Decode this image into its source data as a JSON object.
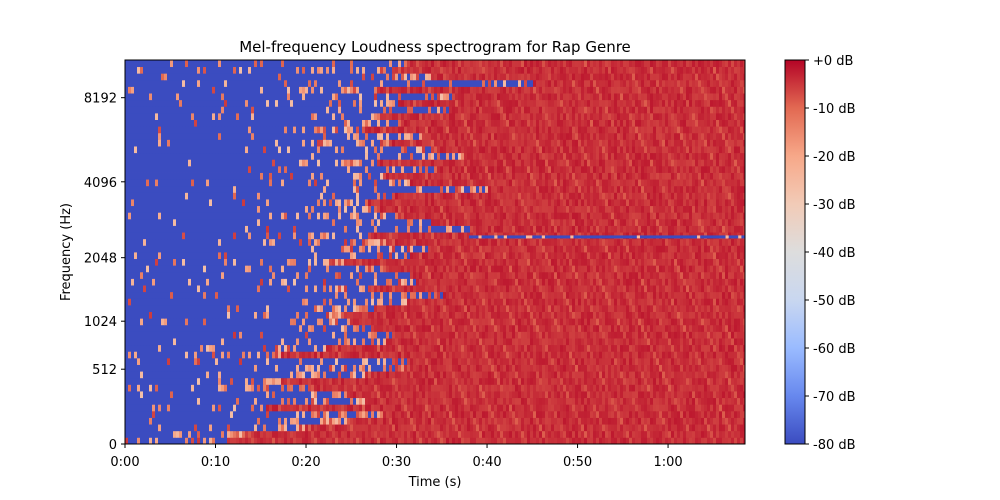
{
  "chart_data": {
    "type": "heatmap",
    "title": "Mel-frequency Loudness spectrogram for Rap Genre",
    "xlabel": "Time (s)",
    "ylabel": "Frequency (Hz)",
    "x_range_seconds": [
      0,
      68.5
    ],
    "x_ticks": [
      {
        "value": 0,
        "label": "0:00"
      },
      {
        "value": 10,
        "label": "0:10"
      },
      {
        "value": 20,
        "label": "0:20"
      },
      {
        "value": 30,
        "label": "0:30"
      },
      {
        "value": 40,
        "label": "0:40"
      },
      {
        "value": 50,
        "label": "0:50"
      },
      {
        "value": 60,
        "label": "1:00"
      }
    ],
    "y_scale": "mel",
    "y_range_hz": [
      0,
      11025
    ],
    "y_ticks": [
      {
        "value": 0,
        "label": "0"
      },
      {
        "value": 512,
        "label": "512"
      },
      {
        "value": 1024,
        "label": "1024"
      },
      {
        "value": 2048,
        "label": "2048"
      },
      {
        "value": 4096,
        "label": "4096"
      },
      {
        "value": 8192,
        "label": "8192"
      }
    ],
    "colormap": "coolwarm",
    "colormap_colors": [
      "#3b4cc0",
      "#6788ee",
      "#9abbff",
      "#c9d7f0",
      "#dddddd",
      "#f2cbb7",
      "#f7a889",
      "#e26952",
      "#b40426"
    ],
    "colorbar": {
      "range_db": [
        -80,
        0
      ],
      "ticks": [
        {
          "value": 0,
          "label": "+0 dB"
        },
        {
          "value": -10,
          "label": "-10 dB"
        },
        {
          "value": -20,
          "label": "-20 dB"
        },
        {
          "value": -30,
          "label": "-30 dB"
        },
        {
          "value": -40,
          "label": "-40 dB"
        },
        {
          "value": -50,
          "label": "-50 dB"
        },
        {
          "value": -60,
          "label": "-60 dB"
        },
        {
          "value": -70,
          "label": "-70 dB"
        },
        {
          "value": -80,
          "label": "-80 dB"
        }
      ]
    },
    "quiet_db": -80,
    "loud_db": -2,
    "onset_seconds_by_band": [
      11.2,
      13.1,
      19.8,
      24.5,
      28.5,
      15.7,
      26.5,
      24.5,
      20.5,
      17.2,
      26.5,
      30.8,
      31.2,
      17.2,
      22.3,
      28.7,
      29.4,
      27.1,
      24.9,
      23.8,
      27.4,
      31.2,
      35.1,
      26.8,
      32.2,
      31.6,
      28.6,
      24.3,
      31.6,
      33.3,
      28.8,
      26.9,
      38.1,
      33.8,
      30.1,
      27.7,
      26.8,
      29.5,
      40.2,
      31.5,
      28.4,
      34.3,
      27.8,
      37.3,
      33.6,
      29.1,
      32.8,
      26.1,
      30.3,
      28.2,
      35.6,
      30.1,
      36.4,
      27.8,
      45.0,
      33.7,
      29.6,
      31.2
    ],
    "dropout_band": {
      "frequency_hz": 2500,
      "from_seconds": 38,
      "to_seconds": 68.5
    }
  },
  "grid": false,
  "legend": "none"
}
